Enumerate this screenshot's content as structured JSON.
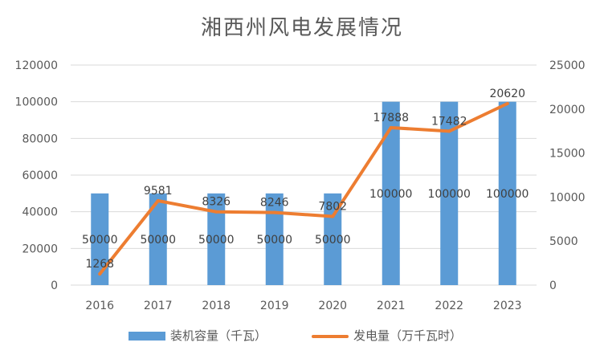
{
  "chart_data": {
    "type": "bar",
    "title": "湘西州风电发展情况",
    "categories": [
      "2016",
      "2017",
      "2018",
      "2019",
      "2020",
      "2021",
      "2022",
      "2023"
    ],
    "series": [
      {
        "name": "装机容量（千瓦）",
        "type": "bar",
        "axis": "left",
        "color": "#5B9BD5",
        "values": [
          50000,
          50000,
          50000,
          50000,
          50000,
          100000,
          100000,
          100000
        ],
        "labels": [
          "50000",
          "50000",
          "50000",
          "50000",
          "50000",
          "100000",
          "100000",
          "100000"
        ]
      },
      {
        "name": "发电量（万千瓦时）",
        "type": "line",
        "axis": "right",
        "color": "#ED7D31",
        "values": [
          1268,
          9581,
          8326,
          8246,
          7802,
          17888,
          17482,
          20620
        ],
        "labels": [
          "1268",
          "9581",
          "8326",
          "8246",
          "7802",
          "17888",
          "17482",
          "20620"
        ]
      }
    ],
    "y_left": {
      "ylim": [
        0,
        120000
      ],
      "ticks": [
        "0",
        "20000",
        "40000",
        "60000",
        "80000",
        "100000",
        "120000"
      ]
    },
    "y_right": {
      "ylim": [
        0,
        25000
      ],
      "ticks": [
        "0",
        "5000",
        "10000",
        "15000",
        "20000",
        "25000"
      ]
    },
    "grid": true,
    "legend_position": "bottom"
  }
}
